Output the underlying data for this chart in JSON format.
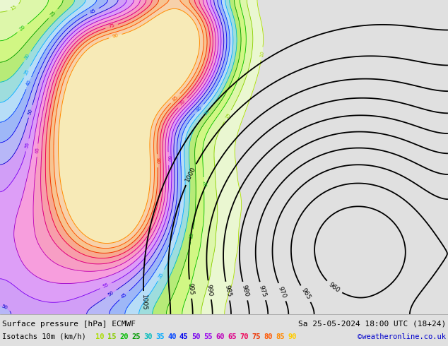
{
  "title_line1": "Surface pressure [hPa] ECMWF",
  "title_line1_right": "Sa 25-05-2024 18:00 UTC (18+24)",
  "title_line2_left": "Isotachs 10m (km/h)",
  "title_line2_right": "©weatheronline.co.uk",
  "isotach_values": [
    10,
    15,
    20,
    25,
    30,
    35,
    40,
    45,
    50,
    55,
    60,
    65,
    70,
    75,
    80,
    85,
    90
  ],
  "isotach_colors": [
    "#aadd00",
    "#88cc00",
    "#00bb00",
    "#009900",
    "#00bbbb",
    "#00aaff",
    "#0044ff",
    "#0000ee",
    "#7700ee",
    "#9900ee",
    "#bb00bb",
    "#dd0088",
    "#ee0055",
    "#ee3300",
    "#ff5500",
    "#ff8800",
    "#ffcc00"
  ],
  "isotach_fill_colors": [
    "#eeffcc",
    "#ddff99",
    "#ccff66",
    "#aaf055",
    "#88dddd",
    "#aaddff",
    "#88aaff",
    "#aaaaff",
    "#cc88ff",
    "#dd88ff",
    "#ff88dd",
    "#ff88bb",
    "#ff8899",
    "#ff9977",
    "#ffbb77",
    "#ffcc99",
    "#ffeeaa"
  ],
  "background_color": "#e0e0e0",
  "map_background": "#e8e8e8",
  "figsize": [
    6.34,
    4.9
  ],
  "dpi": 100
}
